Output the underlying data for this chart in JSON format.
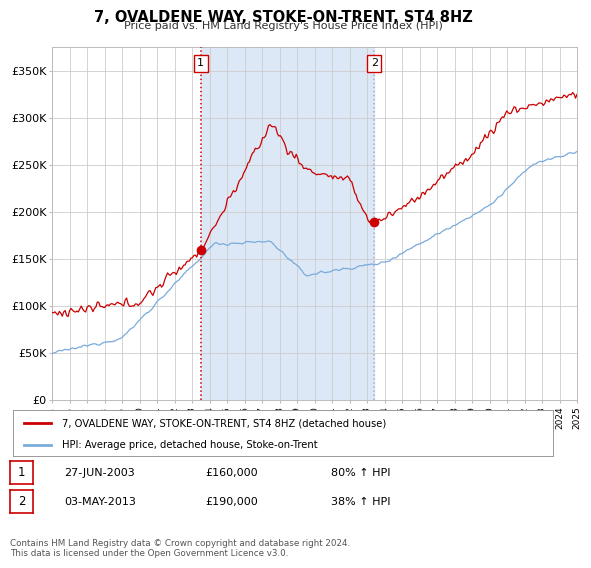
{
  "title": "7, OVALDENE WAY, STOKE-ON-TRENT, ST4 8HZ",
  "subtitle": "Price paid vs. HM Land Registry's House Price Index (HPI)",
  "background_color": "#ffffff",
  "plot_bg_color": "#ffffff",
  "span_color": "#dce8f5",
  "grid_color": "#cccccc",
  "legend_line1": "7, OVALDENE WAY, STOKE-ON-TRENT, ST4 8HZ (detached house)",
  "legend_line2": "HPI: Average price, detached house, Stoke-on-Trent",
  "footer": "Contains HM Land Registry data © Crown copyright and database right 2024.\nThis data is licensed under the Open Government Licence v3.0.",
  "hpi_color": "#7aabdb",
  "price_color": "#cc0000",
  "sale_marker_color": "#cc0000",
  "vline1_color": "#cc0000",
  "vline2_color": "#aaaacc",
  "sale1_date": "27-JUN-2003",
  "sale1_price": 160000,
  "sale1_pct": "80%",
  "sale2_date": "03-MAY-2013",
  "sale2_price": 190000,
  "sale2_pct": "38%",
  "ylim": [
    0,
    375000
  ],
  "yticks": [
    0,
    50000,
    100000,
    150000,
    200000,
    250000,
    300000,
    350000
  ],
  "ytick_labels": [
    "£0",
    "£50K",
    "£100K",
    "£150K",
    "£200K",
    "£250K",
    "£300K",
    "£350K"
  ],
  "x_start_year": 1995,
  "x_end_year": 2025
}
